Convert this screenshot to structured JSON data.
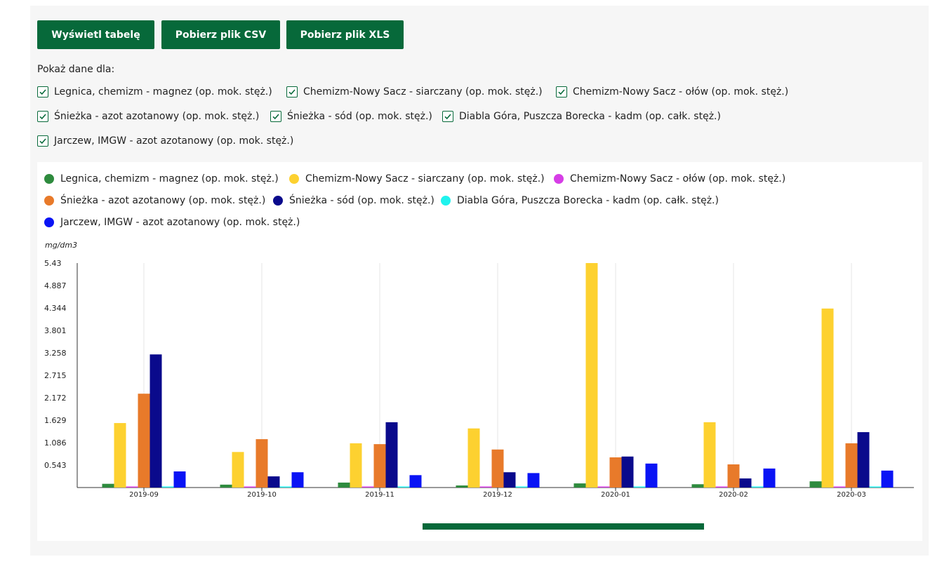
{
  "buttons": {
    "table": "Wyświetl tabelę",
    "csv": "Pobierz plik CSV",
    "xls": "Pobierz plik XLS"
  },
  "filter": {
    "label": "Pokaż dane dla:",
    "items": [
      "Legnica, chemizm - magnez (op. mok. stęż.)",
      "Chemizm-Nowy Sacz - siarczany (op. mok. stęż.)",
      "Chemizm-Nowy Sacz - ołów (op. mok. stęż.)",
      "Śnieżka - azot azotanowy (op. mok. stęż.)",
      "Śnieżka - sód (op. mok. stęż.)",
      "Diabla Góra, Puszcza Borecka - kadm (op. całk. stęż.)",
      "Jarczew, IMGW - azot azotanowy (op. mok. stęż.)"
    ]
  },
  "colors": {
    "brand": "#07693a",
    "series": [
      "#2e8b3e",
      "#fdd130",
      "#d63ee6",
      "#e87a2a",
      "#0a0a8c",
      "#1ff3ee",
      "#0a14f5"
    ]
  },
  "chart_data": {
    "type": "bar",
    "ylabel": "mg/dm3",
    "ylim": [
      0,
      5.43
    ],
    "yticks": [
      "0.543",
      "1.086",
      "1.629",
      "2.172",
      "2.715",
      "3.258",
      "3.801",
      "4.344",
      "4.887",
      "5.43"
    ],
    "categories": [
      "2019-09",
      "2019-10",
      "2019-11",
      "2019-12",
      "2020-01",
      "2020-02",
      "2020-03"
    ],
    "grid": "vertical",
    "legend": "top",
    "series": [
      {
        "name": "Legnica, chemizm - magnez (op. mok. stęż.)",
        "values": [
          0.09,
          0.07,
          0.12,
          0.05,
          0.1,
          0.08,
          0.15
        ]
      },
      {
        "name": "Chemizm-Nowy Sacz - siarczany (op. mok. stęż.)",
        "values": [
          1.56,
          0.86,
          1.07,
          1.43,
          5.43,
          1.58,
          4.33
        ]
      },
      {
        "name": "Chemizm-Nowy Sacz - ołów (op. mok. stęż.)",
        "values": [
          0.01,
          0.01,
          0.01,
          0.01,
          0.01,
          0.01,
          0.01
        ]
      },
      {
        "name": "Śnieżka - azot azotanowy (op. mok. stęż.)",
        "values": [
          2.27,
          1.17,
          1.05,
          0.92,
          0.73,
          0.56,
          1.07
        ]
      },
      {
        "name": "Śnieżka - sód (op. mok. stęż.)",
        "values": [
          3.22,
          0.27,
          1.58,
          0.37,
          0.75,
          0.22,
          1.34
        ]
      },
      {
        "name": "Diabla Góra, Puszcza Borecka - kadm (op. całk. stęż.)",
        "values": [
          0.003,
          0.003,
          0.003,
          0.003,
          0.003,
          0.003,
          0.003
        ]
      },
      {
        "name": "Jarczew, IMGW - azot azotanowy (op. mok. stęż.)",
        "values": [
          0.39,
          0.37,
          0.3,
          0.35,
          0.58,
          0.46,
          0.41
        ]
      }
    ]
  }
}
